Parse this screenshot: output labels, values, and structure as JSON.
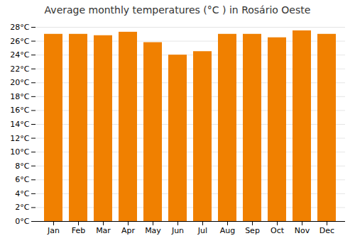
{
  "chart_data": {
    "type": "bar",
    "title": "Average monthly temperatures (°C ) in Rosário Oeste",
    "categories": [
      "Jan",
      "Feb",
      "Mar",
      "Apr",
      "May",
      "Jun",
      "Jul",
      "Aug",
      "Sep",
      "Oct",
      "Nov",
      "Dec"
    ],
    "values": [
      27.0,
      27.0,
      26.8,
      27.3,
      25.8,
      24.0,
      24.5,
      27.0,
      27.0,
      26.5,
      27.5,
      27.0
    ],
    "color": "#F08000",
    "ylim": [
      0,
      28
    ],
    "yticks": [
      {
        "value": 0,
        "label": "0°C"
      },
      {
        "value": 2,
        "label": "2°C"
      },
      {
        "value": 4,
        "label": "4°C"
      },
      {
        "value": 6,
        "label": "6°C"
      },
      {
        "value": 8,
        "label": "8°C"
      },
      {
        "value": 10,
        "label": "10°C"
      },
      {
        "value": 12,
        "label": "12°C"
      },
      {
        "value": 14,
        "label": "14°C"
      },
      {
        "value": 16,
        "label": "16°C"
      },
      {
        "value": 18,
        "label": "18°C"
      },
      {
        "value": 20,
        "label": "20°C"
      },
      {
        "value": 22,
        "label": "22°C"
      },
      {
        "value": 24,
        "label": "24°C"
      },
      {
        "value": 26,
        "label": "26°C"
      },
      {
        "value": 28,
        "label": "28°C"
      }
    ],
    "grid": true
  }
}
